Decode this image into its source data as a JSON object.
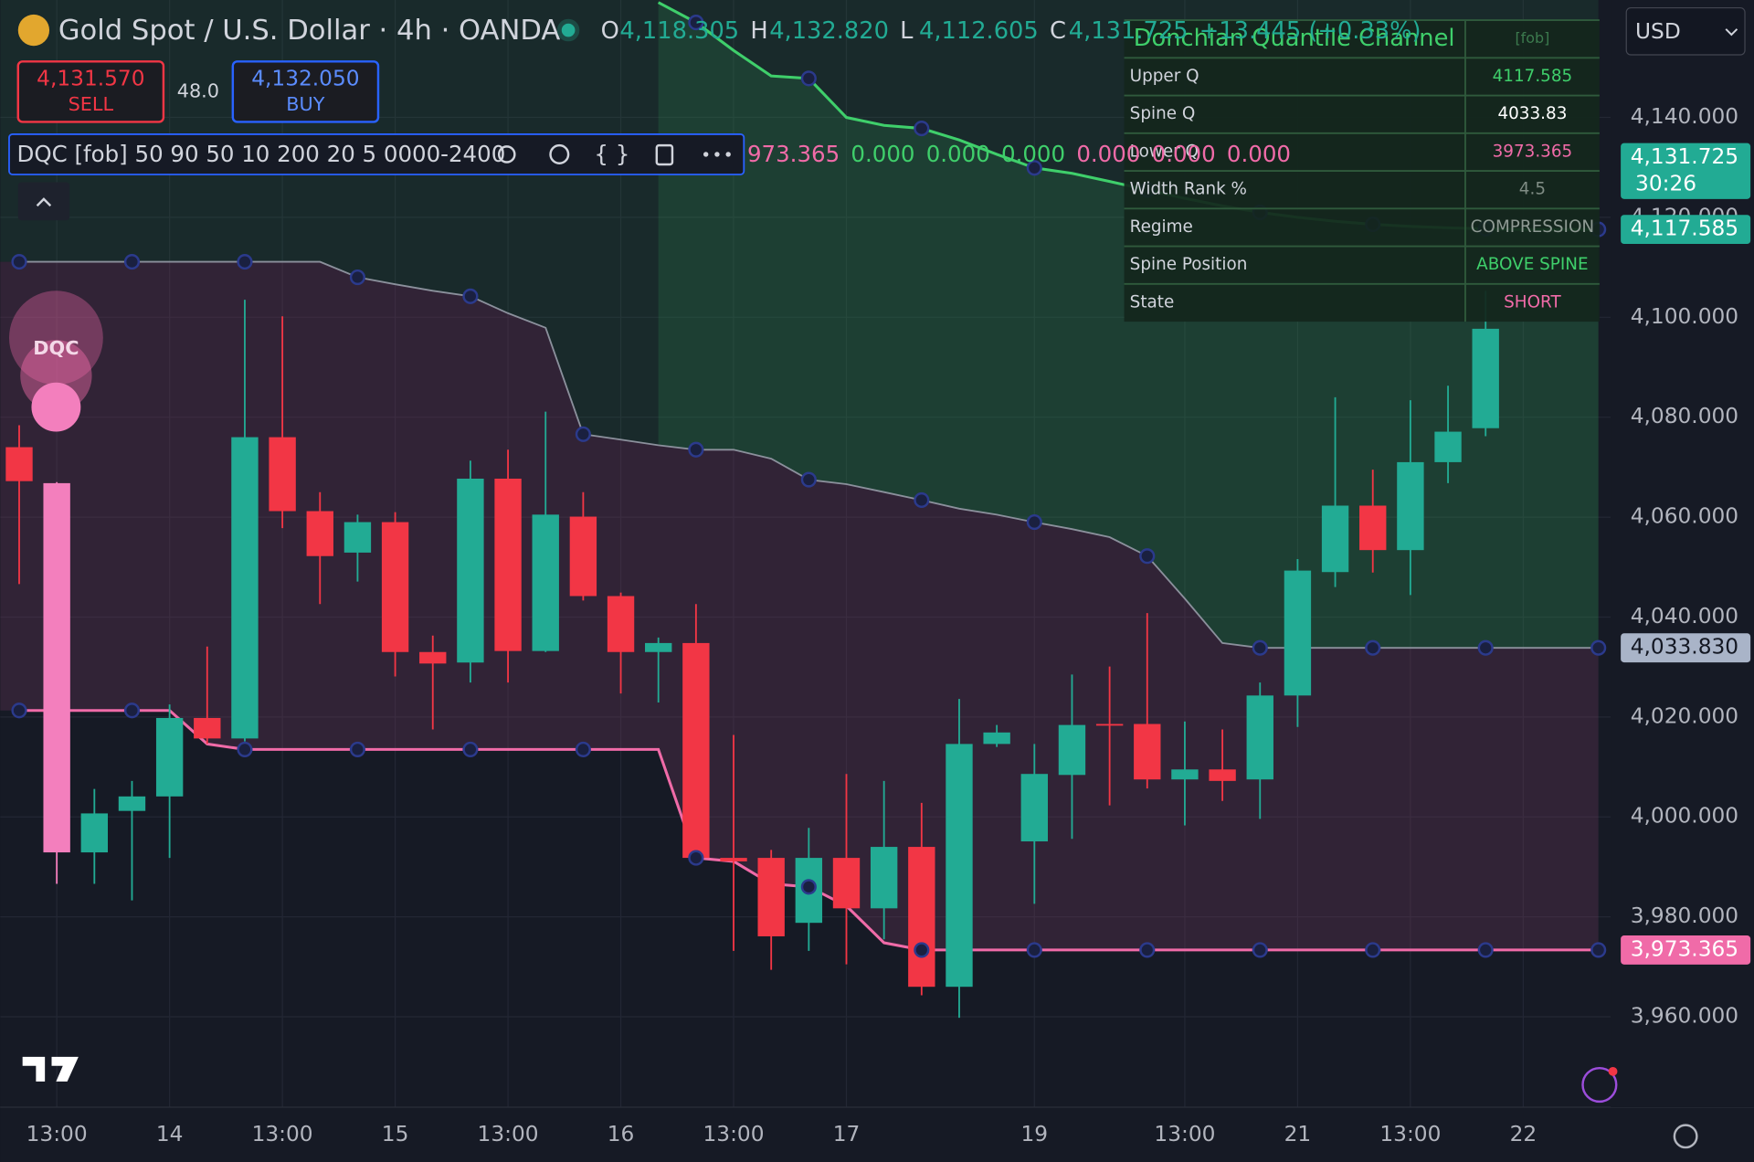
{
  "header": {
    "symbol": "Gold Spot / U.S. Dollar · 4h · OANDA",
    "ohlc": [
      {
        "k": "O",
        "v": "4,118.305"
      },
      {
        "k": "H",
        "v": "4,132.820"
      },
      {
        "k": "L",
        "v": "4,112.605"
      },
      {
        "k": "C",
        "v": "4,131.725"
      }
    ],
    "change": "+13.445 (+0.33%)"
  },
  "trade": {
    "sell_price": "4,131.570",
    "sell": "SELL",
    "spread": "48.0",
    "buy_price": "4,132.050",
    "buy": "BUY"
  },
  "indicator": {
    "label": "DQC [fob] 50 90 50 10 200 20 5 0000-2400",
    "values": [
      "973.365",
      "0.000",
      "0.000",
      "0.000",
      "0.000",
      "0.000",
      "0.000"
    ]
  },
  "currency": "USD",
  "bubble": "DQC",
  "table": {
    "title": "Donchian Quantile Channel",
    "tag": "[fob]",
    "rows": [
      [
        "Upper Q",
        "4117.585"
      ],
      [
        "Spine Q",
        "4033.83"
      ],
      [
        "Lower Q",
        "3973.365"
      ],
      [
        "Width Rank %",
        "4.5"
      ],
      [
        "Regime",
        "COMPRESSION"
      ],
      [
        "Spine Position",
        "ABOVE SPINE"
      ],
      [
        "State",
        "SHORT"
      ]
    ]
  },
  "price_tags": [
    {
      "value": 4131.725,
      "label": "4,131.725",
      "sub": "30:26",
      "color": "#22ab94"
    },
    {
      "value": 4117.585,
      "label": "4,117.585",
      "color": "#22ab94"
    },
    {
      "value": 4033.83,
      "label": "4,033.830",
      "color": "#a9b4c8"
    },
    {
      "value": 3973.365,
      "label": "3,973.365",
      "color": "#f06ba8"
    }
  ],
  "chart_data": {
    "type": "candlestick",
    "categories": [
      null,
      "13:00",
      null,
      null,
      "14",
      null,
      null,
      "13:00",
      null,
      null,
      "15",
      null,
      null,
      "13:00",
      null,
      null,
      "16",
      null,
      null,
      "13:00",
      null,
      null,
      "17",
      null,
      null,
      null,
      null,
      "19",
      null,
      null,
      null,
      "13:00",
      null,
      null,
      "21",
      null,
      null,
      "13:00",
      null,
      null,
      "22",
      null,
      null
    ],
    "open": [
      4074.0,
      4066.8,
      3992.9,
      4001.2,
      4004.1,
      4019.8,
      4015.7,
      4076.0,
      4061.2,
      4052.9,
      4059.0,
      4033.0,
      4030.9,
      4067.7,
      4033.2,
      4060.1,
      4044.2,
      4033.0,
      4034.8,
      3991.8,
      3991.8,
      3978.8,
      3991.8,
      3981.7,
      3994.0,
      3966.0,
      4014.6,
      3995.1,
      4008.4,
      4018.6,
      4018.6,
      4007.5,
      4009.5,
      4007.5,
      4024.3,
      4049.0,
      4062.3,
      4053.4,
      4071.0,
      4077.8,
      null,
      null,
      null
    ],
    "high": [
      4078.4,
      4067.0,
      4005.6,
      4007.2,
      4022.5,
      4034.1,
      4103.5,
      4100.2,
      4065.0,
      4060.5,
      4061.0,
      4036.3,
      4071.3,
      4073.5,
      4081.1,
      4065.0,
      4044.9,
      4035.9,
      4042.6,
      4016.4,
      3993.4,
      3997.8,
      4008.6,
      4007.2,
      4002.8,
      4023.6,
      4018.4,
      4014.6,
      4028.5,
      4030.1,
      4040.8,
      4019.1,
      4017.5,
      4026.9,
      4051.6,
      4084.0,
      4069.5,
      4083.4,
      4086.3,
      4105.3,
      null,
      null,
      null
    ],
    "low": [
      4046.6,
      3986.6,
      3986.6,
      3983.3,
      3991.8,
      4014.6,
      4015.1,
      4057.8,
      4042.6,
      4047.1,
      4028.1,
      4017.5,
      4026.9,
      4026.9,
      4033.0,
      4043.3,
      4024.7,
      4022.9,
      3991.8,
      3973.2,
      3969.4,
      3973.2,
      3970.5,
      3975.5,
      3964.3,
      3959.8,
      4014.0,
      3982.6,
      3995.6,
      4002.3,
      4005.7,
      3998.3,
      4003.2,
      3999.6,
      4018.0,
      4046.0,
      4048.9,
      4044.4,
      4066.8,
      4076.2,
      null,
      null,
      null
    ],
    "close": [
      4067.2,
      3992.9,
      4000.7,
      4004.1,
      4019.8,
      4015.7,
      4076.0,
      4061.2,
      4052.2,
      4059.0,
      4033.0,
      4030.7,
      4067.7,
      4033.2,
      4060.5,
      4044.2,
      4033.0,
      4034.8,
      3991.8,
      3991.1,
      3976.1,
      3991.8,
      3981.7,
      3994.0,
      3966.0,
      4014.6,
      4016.9,
      4008.6,
      4018.4,
      4018.4,
      4007.5,
      4009.5,
      4007.2,
      4024.3,
      4049.3,
      4062.3,
      4053.4,
      4071.0,
      4077.1,
      4097.7,
      null,
      null,
      null
    ],
    "up_color": "#22ab94",
    "down_color": "#f23645",
    "highlight": {
      "index": 1,
      "color": "#f37fbd"
    },
    "series": [
      {
        "name": "Upper Q",
        "color": "#3fcf6b",
        "values": [
          null,
          null,
          null,
          null,
          null,
          null,
          null,
          null,
          null,
          null,
          null,
          null,
          null,
          null,
          null,
          null,
          null,
          4163.0,
          4159.0,
          4153.4,
          4148.3,
          4147.8,
          4140.0,
          4138.4,
          4137.8,
          4135.5,
          4132.6,
          4129.9,
          4128.8,
          4127.2,
          4125.5,
          4123.8,
          4122.3,
          4121.0,
          4120.0,
          4119.2,
          4118.6,
          4118.2,
          4117.9,
          4117.7,
          4117.6,
          4117.585,
          4117.585
        ]
      },
      {
        "name": "Spine Q",
        "color": "#8b909c",
        "values": [
          4111.1,
          4111.1,
          4111.1,
          4111.1,
          4111.1,
          4111.1,
          4111.1,
          4111.1,
          4111.1,
          4108.0,
          4106.6,
          4105.3,
          4104.2,
          4100.8,
          4097.9,
          4076.6,
          4075.5,
          4074.4,
          4073.5,
          4073.5,
          4071.7,
          4067.5,
          4066.6,
          4065.0,
          4063.4,
          4061.7,
          4060.5,
          4059.0,
          4057.6,
          4056.0,
          4052.2,
          4043.7,
          4034.8,
          4033.83,
          4033.83,
          4033.83,
          4033.83,
          4033.83,
          4033.83,
          4033.83,
          4033.83,
          4033.83,
          4033.83
        ]
      },
      {
        "name": "Lower Q",
        "color": "#f06ba8",
        "values": [
          4021.3,
          4021.3,
          4021.3,
          4021.3,
          4021.3,
          4014.6,
          4013.5,
          4013.5,
          4013.5,
          4013.5,
          4013.5,
          4013.5,
          4013.5,
          4013.5,
          4013.5,
          4013.5,
          4013.5,
          4013.5,
          3991.8,
          3991.1,
          3986.6,
          3986.0,
          3982.2,
          3974.8,
          3973.365,
          3973.365,
          3973.365,
          3973.365,
          3973.365,
          3973.365,
          3973.365,
          3973.365,
          3973.365,
          3973.365,
          3973.365,
          3973.365,
          3973.365,
          3973.365,
          3973.365,
          3973.365,
          3973.365,
          3973.365,
          3973.365
        ]
      }
    ],
    "ylim": [
      3941.9,
      4163.5
    ],
    "yticks": [
      {
        "value": 4140,
        "label": "4,140.000"
      },
      {
        "value": 4120,
        "label": "4,120.000"
      },
      {
        "value": 4100,
        "label": "4,100.000"
      },
      {
        "value": 4080,
        "label": "4,080.000"
      },
      {
        "value": 4060,
        "label": "4,060.000"
      },
      {
        "value": 4040,
        "label": "4,040.000"
      },
      {
        "value": 4020,
        "label": "4,020.000"
      },
      {
        "value": 4000,
        "label": "4,000.000"
      },
      {
        "value": 3980,
        "label": "3,980.000"
      },
      {
        "value": 3960,
        "label": "3,960.000"
      }
    ],
    "grid": true
  }
}
